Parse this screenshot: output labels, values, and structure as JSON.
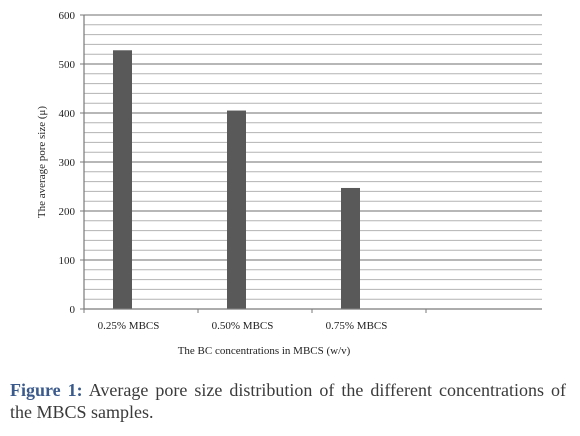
{
  "chart_data": {
    "type": "bar",
    "categories": [
      "0.25% MBCS",
      "0.50% MBCS",
      "0.75% MBCS"
    ],
    "values": [
      528,
      405,
      247
    ],
    "ylim": [
      0,
      600
    ],
    "yticks": [
      0,
      100,
      200,
      300,
      400,
      500,
      600
    ],
    "minor_grid_step": 20,
    "xlabel": "The BC concentrations in MBCS (w/v)",
    "ylabel": "The average pore size (μ)",
    "bar_color": "#595959",
    "grid": true,
    "legend": "none"
  },
  "caption": {
    "label": "Figure 1:",
    "text": " Average pore size distribution of the different concentrations of the MBCS samples.",
    "label_color": "#3b5a8c"
  }
}
